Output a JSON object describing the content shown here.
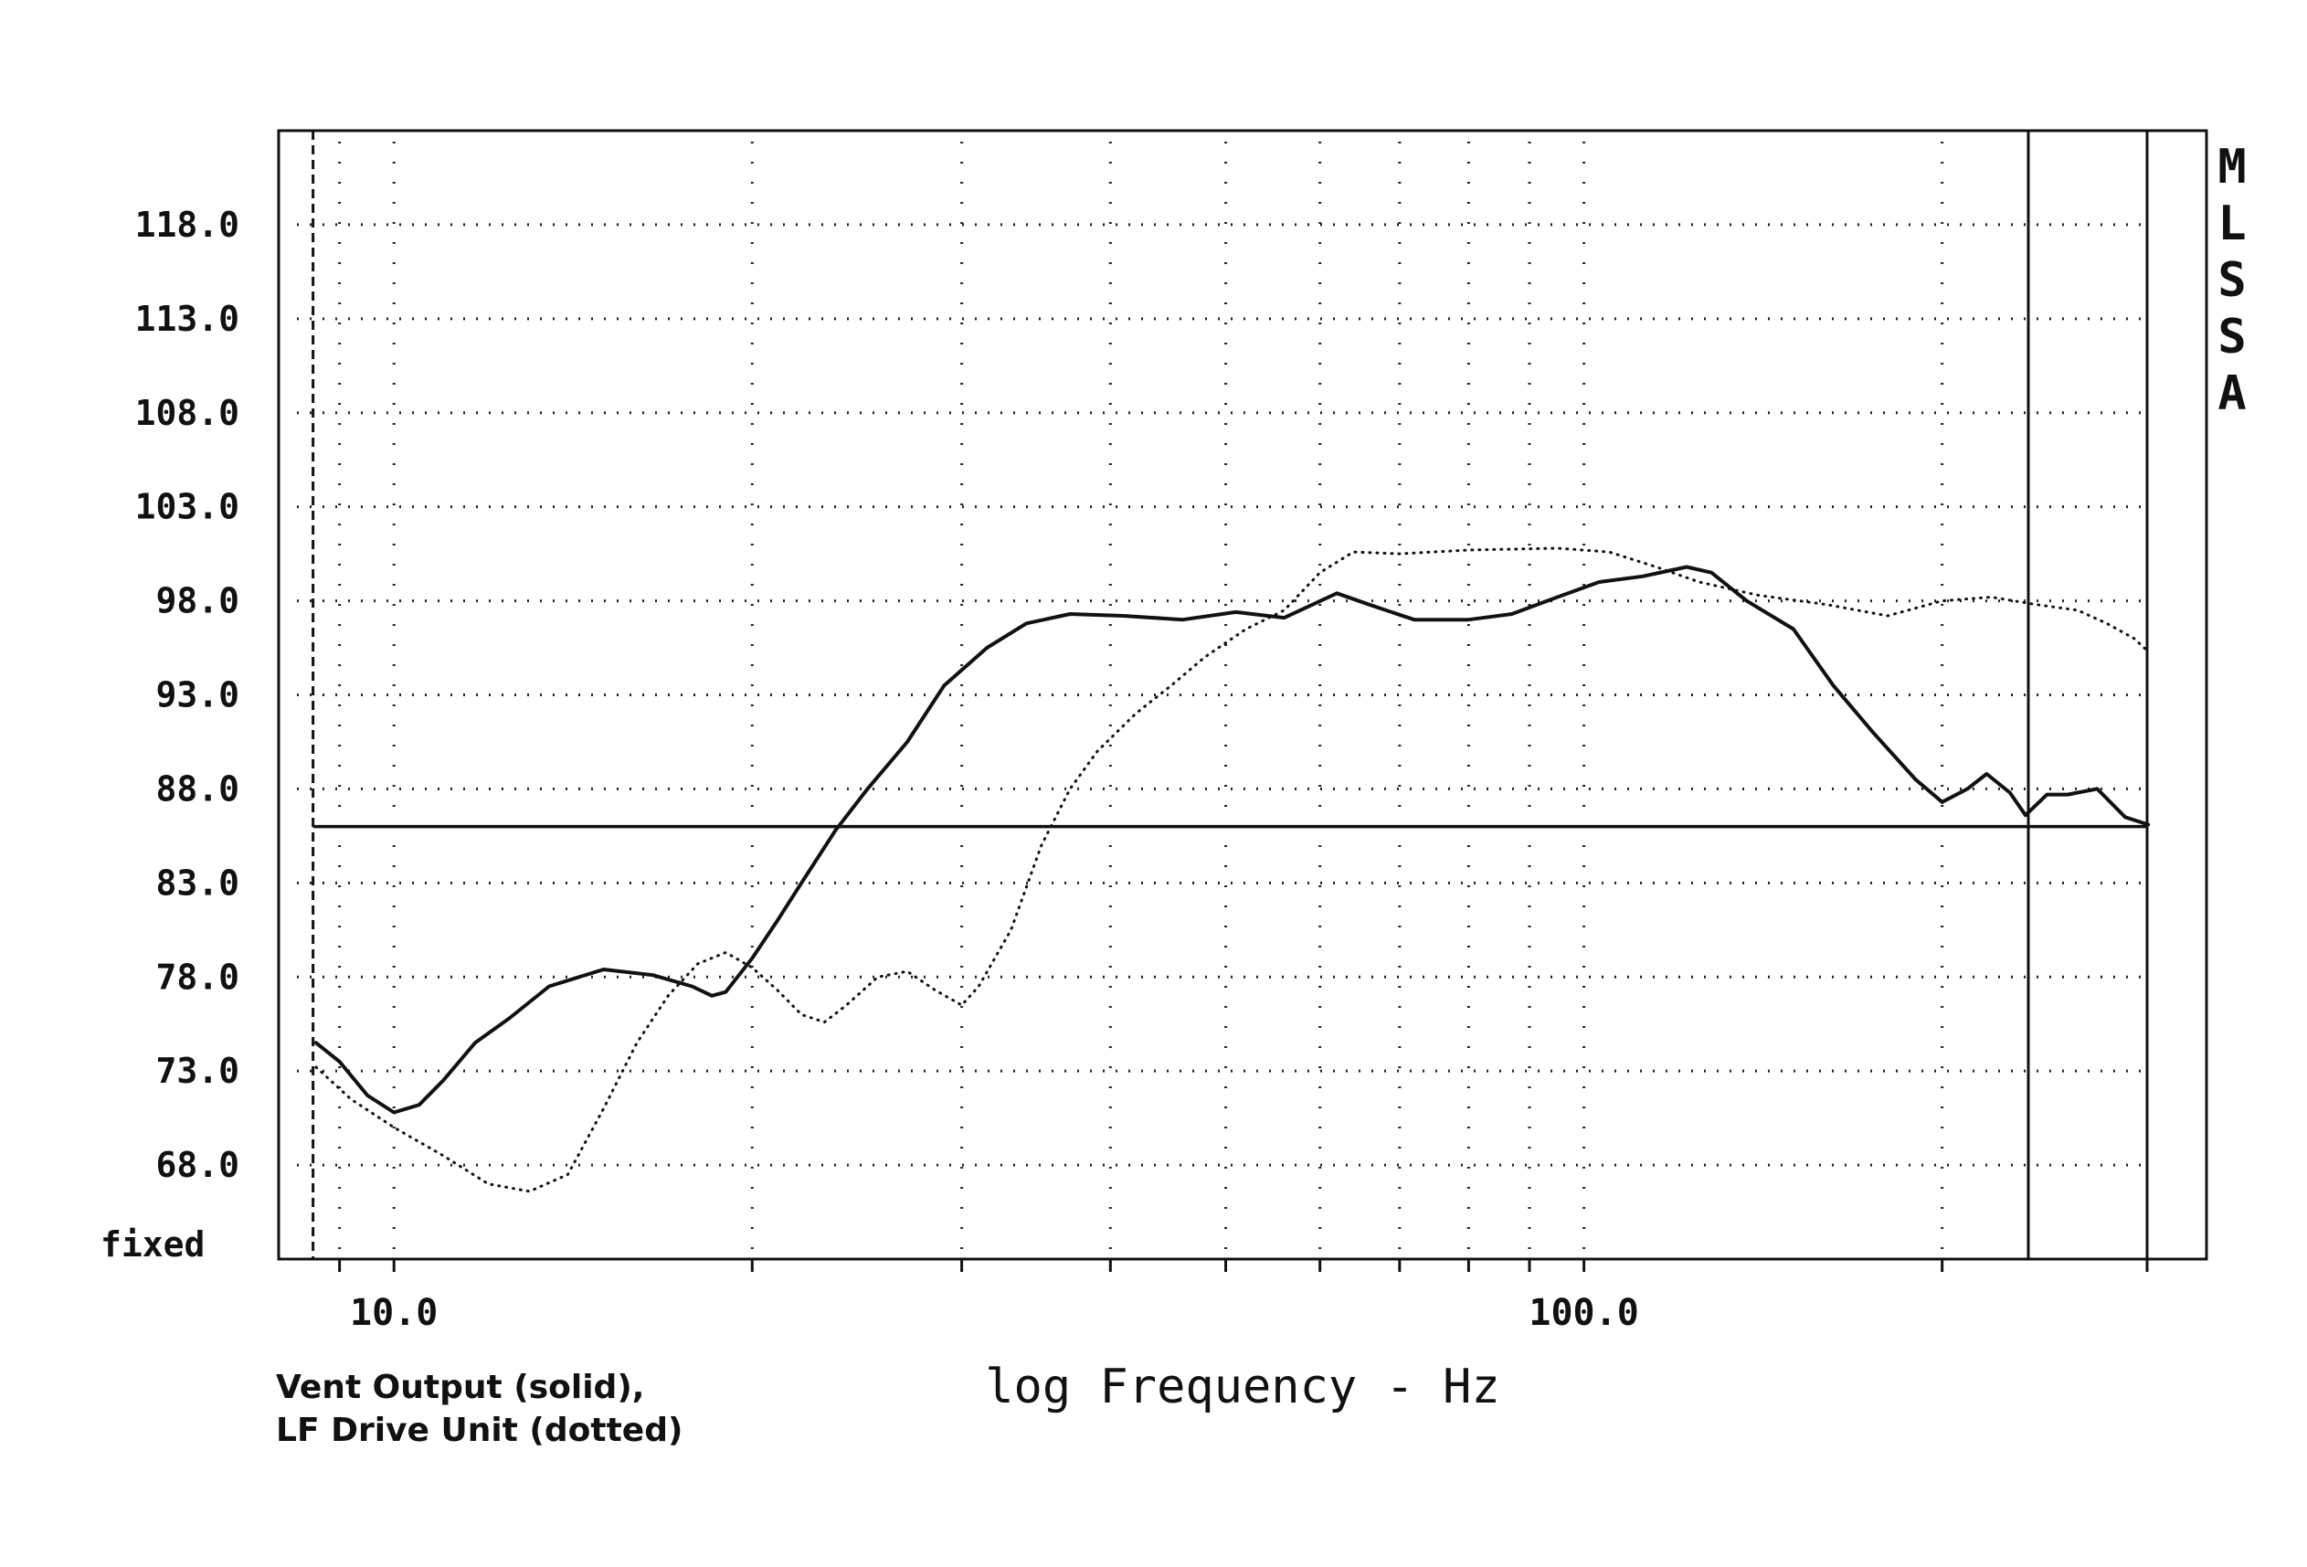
{
  "chart_data": {
    "type": "line",
    "xscale": "log",
    "xlim": [
      8,
      300
    ],
    "ylim": [
      63,
      123
    ],
    "yticks": [
      {
        "value": 118,
        "label": "118.0"
      },
      {
        "value": 113,
        "label": "113.0"
      },
      {
        "value": 108,
        "label": "108.0"
      },
      {
        "value": 103,
        "label": "103.0"
      },
      {
        "value": 98,
        "label": "98.0"
      },
      {
        "value": 93,
        "label": "93.0"
      },
      {
        "value": 88,
        "label": "88.0"
      },
      {
        "value": 83,
        "label": "83.0"
      },
      {
        "value": 78,
        "label": "78.0"
      },
      {
        "value": 73,
        "label": "73.0"
      },
      {
        "value": 68,
        "label": "68.0"
      }
    ],
    "y_scale_label": "fixed",
    "xticks": [
      {
        "value": 10,
        "label": "10.0"
      },
      {
        "value": 100,
        "label": "100.0"
      }
    ],
    "x_minor_gridlines": [
      9,
      10,
      20,
      30,
      40,
      50,
      60,
      70,
      80,
      90,
      100,
      200
    ],
    "reference_line": {
      "y": 86,
      "x_start": 8.55,
      "x_end": 298
    },
    "xlabel": "log Frequency - Hz",
    "side_label": "MLSSA",
    "grid": true,
    "series": [
      {
        "style": "solid",
        "points": [
          [
            8.6,
            74.5
          ],
          [
            9,
            73.5
          ],
          [
            9.5,
            71.7
          ],
          [
            10,
            70.8
          ],
          [
            10.5,
            71.2
          ],
          [
            11,
            72.5
          ],
          [
            11.7,
            74.5
          ],
          [
            12.5,
            75.8
          ],
          [
            13.5,
            77.5
          ],
          [
            15,
            78.4
          ],
          [
            16.5,
            78.1
          ],
          [
            17.8,
            77.5
          ],
          [
            18.5,
            77.0
          ],
          [
            19,
            77.2
          ],
          [
            20,
            79.0
          ],
          [
            21,
            81.0
          ],
          [
            22,
            83.0
          ],
          [
            23.5,
            85.8
          ],
          [
            25,
            88.0
          ],
          [
            27,
            90.5
          ],
          [
            29,
            93.5
          ],
          [
            31.5,
            95.5
          ],
          [
            34,
            96.8
          ],
          [
            37,
            97.3
          ],
          [
            41,
            97.2
          ],
          [
            46,
            97.0
          ],
          [
            51,
            97.4
          ],
          [
            56,
            97.1
          ],
          [
            62,
            98.4
          ],
          [
            66,
            97.8
          ],
          [
            72,
            97.0
          ],
          [
            80,
            97.0
          ],
          [
            87,
            97.3
          ],
          [
            95,
            98.2
          ],
          [
            103,
            99.0
          ],
          [
            112,
            99.3
          ],
          [
            122,
            99.8
          ],
          [
            128,
            99.5
          ],
          [
            137,
            98.0
          ],
          [
            150,
            96.5
          ],
          [
            162,
            93.5
          ],
          [
            175,
            91.0
          ],
          [
            190,
            88.5
          ],
          [
            200,
            87.3
          ],
          [
            210,
            88.0
          ],
          [
            218,
            88.8
          ],
          [
            228,
            87.8
          ],
          [
            235,
            86.6
          ],
          [
            245,
            87.7
          ],
          [
            255,
            87.7
          ],
          [
            270,
            88.0
          ],
          [
            285,
            86.5
          ],
          [
            298,
            86.1
          ]
        ]
      },
      {
        "style": "dotted",
        "points": [
          [
            8.6,
            73.2
          ],
          [
            9.2,
            71.5
          ],
          [
            10,
            70.0
          ],
          [
            11,
            68.5
          ],
          [
            12,
            67.0
          ],
          [
            13,
            66.6
          ],
          [
            14,
            67.5
          ],
          [
            15,
            71.0
          ],
          [
            16,
            74.5
          ],
          [
            17,
            77.0
          ],
          [
            18,
            78.7
          ],
          [
            19,
            79.3
          ],
          [
            20,
            78.5
          ],
          [
            21,
            77.3
          ],
          [
            22,
            76.0
          ],
          [
            23,
            75.6
          ],
          [
            24,
            76.5
          ],
          [
            25.5,
            78.0
          ],
          [
            27,
            78.3
          ],
          [
            28.5,
            77.3
          ],
          [
            30,
            76.5
          ],
          [
            31,
            77.5
          ],
          [
            33,
            80.5
          ],
          [
            35,
            85.0
          ],
          [
            37,
            88.0
          ],
          [
            39,
            90.0
          ],
          [
            42,
            92.0
          ],
          [
            45,
            93.5
          ],
          [
            48,
            95.0
          ],
          [
            52,
            96.5
          ],
          [
            56,
            97.5
          ],
          [
            60,
            99.5
          ],
          [
            64,
            100.6
          ],
          [
            70,
            100.5
          ],
          [
            80,
            100.7
          ],
          [
            95,
            100.8
          ],
          [
            105,
            100.6
          ],
          [
            115,
            99.8
          ],
          [
            125,
            99.0
          ],
          [
            140,
            98.3
          ],
          [
            160,
            97.8
          ],
          [
            180,
            97.2
          ],
          [
            200,
            98.0
          ],
          [
            220,
            98.2
          ],
          [
            240,
            97.8
          ],
          [
            260,
            97.5
          ],
          [
            275,
            96.8
          ],
          [
            290,
            96.0
          ],
          [
            298,
            95.3
          ]
        ]
      }
    ]
  },
  "caption": {
    "line1": "Vent Output (solid),",
    "line2": "LF Drive Unit (dotted)"
  }
}
